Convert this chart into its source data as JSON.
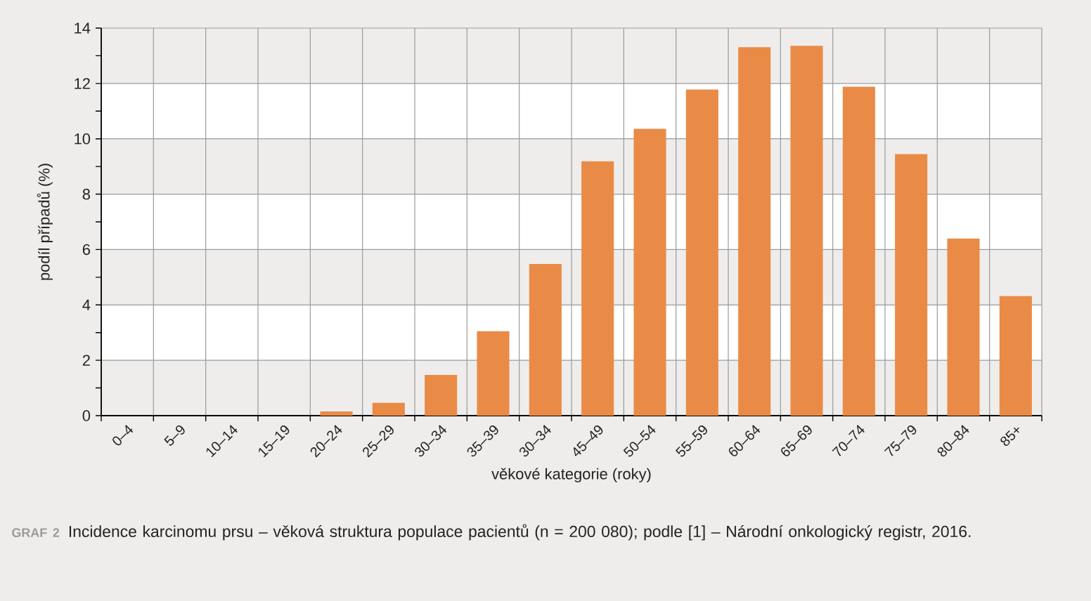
{
  "chart_data": {
    "type": "bar",
    "categories": [
      "0–4",
      "5–9",
      "10–14",
      "15–19",
      "20–24",
      "25–29",
      "30–34",
      "35–39",
      "30–34",
      "45–49",
      "50–54",
      "55–59",
      "60–64",
      "65–69",
      "70–74",
      "75–79",
      "80–84",
      "85+"
    ],
    "values": [
      0,
      0,
      0,
      0,
      0.15,
      0.46,
      1.47,
      3.05,
      5.48,
      9.19,
      10.36,
      11.78,
      13.31,
      13.36,
      11.88,
      9.45,
      6.4,
      4.32
    ],
    "color": "#e98b47",
    "xlabel": "věkové kategorie (roky)",
    "ylabel": "podíl případů (%)",
    "ylim": [
      0,
      14
    ],
    "yticks": [
      0,
      {
        "value": 1,
        "label": null
      },
      2,
      {
        "value": 3,
        "label": null
      },
      4,
      {
        "value": 5,
        "label": null
      },
      6,
      {
        "value": 7,
        "label": null
      },
      8,
      {
        "value": 9,
        "label": null
      },
      10,
      {
        "value": 11,
        "label": null
      },
      12,
      {
        "value": 13,
        "label": null
      },
      14
    ],
    "grid": true,
    "bands": [
      {
        "axis": "y",
        "from": 2,
        "to": 4,
        "color": "#ffffff"
      },
      {
        "axis": "y",
        "from": 6,
        "to": 8,
        "color": "#ffffff"
      },
      {
        "axis": "y",
        "from": 10,
        "to": 12,
        "color": "#ffffff"
      }
    ],
    "annotations": [
      "GRAF 2",
      "Incidence karcinomu prsu – věková struktura populace pacientů (n = 200 080); podle [1] – Národní onkologický registr, 2016."
    ]
  }
}
